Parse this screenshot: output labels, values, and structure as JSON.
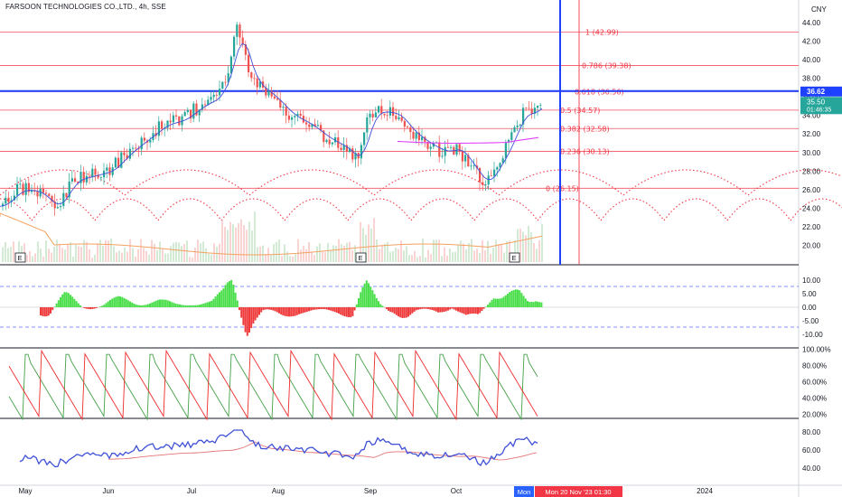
{
  "header": {
    "title": "FARSOON TECHNOLOGIES CO.,LTD., 4h, SSE",
    "currency": "CNY"
  },
  "colors": {
    "up": "#26a69a",
    "down": "#ef5350",
    "fib": "#f23645",
    "blue_line": "#1e40ff",
    "pink_ma": "#e040fb",
    "volume_ma": "#f4a261",
    "hist_up": "#4ade4a",
    "hist_down": "#ef3b3b",
    "stoch_k": "#ef2b2b",
    "stoch_d": "#43a047",
    "rsi": "#3f51d8",
    "rsi_ma": "#e57373",
    "price_tag_blue": "#1e40ff",
    "price_tag_teal": "#26a69a"
  },
  "price_axis": {
    "ticks": [
      "44.00",
      "42.00",
      "40.00",
      "38.00",
      "36.00",
      "34.00",
      "32.00",
      "30.00",
      "28.00",
      "26.00",
      "24.00",
      "22.00",
      "20.00"
    ],
    "current_blue": "36.62",
    "current_price": "35.50",
    "countdown": "01:46:35"
  },
  "fib_levels": [
    {
      "label": "1 (42.99)",
      "value": 42.99
    },
    {
      "label": "0.786 (39.38)",
      "value": 39.38
    },
    {
      "label": "0.618 (36.56)",
      "value": 36.56
    },
    {
      "label": "0.5 (34.57)",
      "value": 34.57
    },
    {
      "label": "0.382 (32.58)",
      "value": 32.58
    },
    {
      "label": "0.236 (30.13)",
      "value": 30.13
    },
    {
      "label": "0 (26.15)",
      "value": 26.15
    }
  ],
  "horizontal_blue_price": 36.62,
  "earnings_markers": [
    "E",
    "E",
    "E"
  ],
  "macd_axis": {
    "ticks": [
      "10.00",
      "5.00",
      "0.00",
      "-5.00",
      "-10.00"
    ]
  },
  "stoch_axis": {
    "ticks": [
      "100.00%",
      "80.00%",
      "60.00%",
      "40.00%",
      "20.00%"
    ]
  },
  "rsi_axis": {
    "ticks": [
      "80.00",
      "60.00",
      "40.00"
    ]
  },
  "time_axis": {
    "labels": [
      "May",
      "Jun",
      "Jul",
      "Aug",
      "Sep",
      "Oct",
      "Nov",
      "2024"
    ],
    "crosshair_day": "Mon",
    "crosshair_date": "Mon 20 Nov '23   01:30"
  },
  "chart_data": {
    "type": "candlestick",
    "title": "FARSOON TECHNOLOGIES CO.,LTD., 4h, SSE",
    "interval": "4h",
    "x_range": [
      "May 2023",
      "Nov 2023"
    ],
    "ylim": [
      19,
      45
    ],
    "close_path": [
      {
        "x": "May",
        "y": 24.2
      },
      {
        "x": "mid-May",
        "y": 26.5
      },
      {
        "x": "late-May",
        "y": 24.0
      },
      {
        "x": "Jun",
        "y": 28.0
      },
      {
        "x": "mid-Jun",
        "y": 30.5
      },
      {
        "x": "Jul",
        "y": 33.5
      },
      {
        "x": "mid-Jul",
        "y": 43.5
      },
      {
        "x": "late-Jul",
        "y": 36.0
      },
      {
        "x": "Aug",
        "y": 35.0
      },
      {
        "x": "mid-Aug",
        "y": 31.5
      },
      {
        "x": "late-Aug",
        "y": 29.0
      },
      {
        "x": "Sep",
        "y": 34.0
      },
      {
        "x": "mid-Sep",
        "y": 33.0
      },
      {
        "x": "late-Sep",
        "y": 30.0
      },
      {
        "x": "Oct",
        "y": 30.5
      },
      {
        "x": "mid-Oct",
        "y": 26.5
      },
      {
        "x": "late-Oct",
        "y": 29.0
      },
      {
        "x": "Nov",
        "y": 33.0
      },
      {
        "x": "mid-Nov",
        "y": 35.5
      }
    ],
    "indicators": [
      "Fibonacci retracement",
      "Volume",
      "MACD histogram",
      "Stochastic",
      "RSI"
    ]
  }
}
